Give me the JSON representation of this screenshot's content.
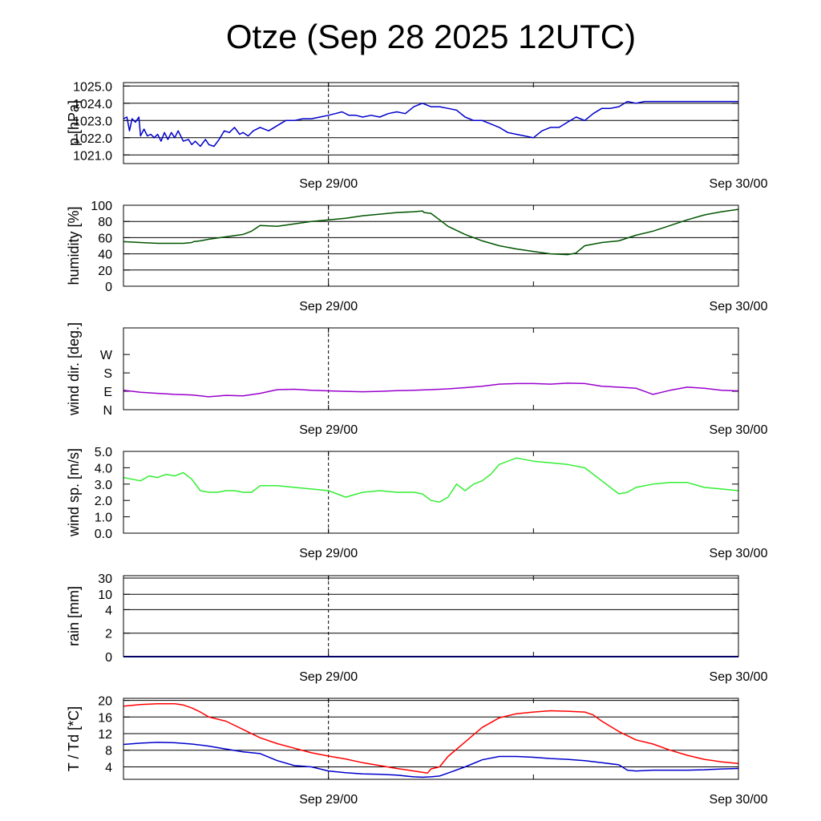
{
  "title": "Otze (Sep 28 2025 12UTC)",
  "x_labels": [
    "Sep 29/00",
    "Sep 30/00"
  ],
  "chart_data": [
    {
      "type": "line",
      "id": "pressure",
      "ylabel": "p [hPa]",
      "ylim": [
        1020.5,
        1025.2
      ],
      "yticks": [
        1021.0,
        1022.0,
        1023.0,
        1024.0,
        1025.0
      ],
      "ytick_labels": [
        "1021.0",
        "1022.0",
        "1023.0",
        "1024.0",
        "1025.0"
      ],
      "xlim": [
        0,
        36
      ],
      "x_tick_hours": [
        12,
        24,
        36
      ],
      "grid": true,
      "series": [
        {
          "color": "#0000cc",
          "x": [
            0,
            0.2,
            0.35,
            0.5,
            0.7,
            0.9,
            1.0,
            1.2,
            1.4,
            1.6,
            1.8,
            2.0,
            2.2,
            2.4,
            2.6,
            2.8,
            3.0,
            3.2,
            3.5,
            3.8,
            4.0,
            4.2,
            4.5,
            4.8,
            5.0,
            5.3,
            5.6,
            5.9,
            6.2,
            6.5,
            6.8,
            7.0,
            7.3,
            7.6,
            8.0,
            8.5,
            9.0,
            9.5,
            10.0,
            10.5,
            11.0,
            11.5,
            12.0,
            12.4,
            12.8,
            13.2,
            13.6,
            14.0,
            14.5,
            15.0,
            15.5,
            16.0,
            16.5,
            17.0,
            17.5,
            18.0,
            18.5,
            19.0,
            19.5,
            20.0,
            20.5,
            21.0,
            21.5,
            22.0,
            22.5,
            23.0,
            23.5,
            24.0,
            24.5,
            25.0,
            25.5,
            26.0,
            26.5,
            27.0,
            27.5,
            28.0,
            28.5,
            29.0,
            29.5,
            30.0,
            30.5,
            31.0,
            31.5,
            32.0,
            32.5,
            33.0,
            33.5,
            34.0,
            34.5,
            35.0,
            35.5,
            36.0
          ],
          "y": [
            1023.1,
            1023.2,
            1022.4,
            1023.1,
            1022.9,
            1023.2,
            1022.1,
            1022.5,
            1022.1,
            1022.2,
            1022.0,
            1022.2,
            1021.8,
            1022.3,
            1021.9,
            1022.3,
            1022.0,
            1022.4,
            1021.8,
            1021.9,
            1021.6,
            1021.8,
            1021.5,
            1021.9,
            1021.6,
            1021.5,
            1021.9,
            1022.4,
            1022.3,
            1022.6,
            1022.2,
            1022.3,
            1022.1,
            1022.4,
            1022.6,
            1022.4,
            1022.7,
            1023.0,
            1023.0,
            1023.1,
            1023.1,
            1023.2,
            1023.3,
            1023.4,
            1023.5,
            1023.3,
            1023.3,
            1023.2,
            1023.3,
            1023.2,
            1023.4,
            1023.5,
            1023.4,
            1023.8,
            1024.0,
            1023.8,
            1023.8,
            1023.7,
            1023.6,
            1023.2,
            1023.0,
            1023.0,
            1022.8,
            1022.6,
            1022.3,
            1022.2,
            1022.1,
            1022.0,
            1022.4,
            1022.6,
            1022.6,
            1022.9,
            1023.2,
            1023.0,
            1023.4,
            1023.7,
            1023.7,
            1023.8,
            1024.1,
            1024.0,
            1024.1,
            1024.1,
            1024.1,
            1024.1,
            1024.1,
            1024.1,
            1024.1,
            1024.1,
            1024.1,
            1024.1,
            1024.1,
            1024.1
          ]
        }
      ]
    },
    {
      "type": "line",
      "id": "humidity",
      "ylabel": "humidity [%]",
      "ylim": [
        0,
        100
      ],
      "yticks": [
        0,
        20,
        40,
        60,
        80,
        100
      ],
      "ytick_labels": [
        "0",
        "20",
        "40",
        "60",
        "80",
        "100"
      ],
      "xlim": [
        0,
        36
      ],
      "x_tick_hours": [
        12,
        24,
        36
      ],
      "grid": true,
      "series": [
        {
          "color": "#005500",
          "x": [
            0,
            1,
            2,
            3,
            3.5,
            4.0,
            4.1,
            4.5,
            5.0,
            6,
            7,
            7.5,
            8,
            9,
            10,
            11,
            12,
            13,
            14,
            15,
            16,
            17,
            17.5,
            17.6,
            18,
            18.5,
            19,
            20,
            21,
            22,
            23,
            24,
            25,
            26,
            26.5,
            26.6,
            27,
            27.5,
            28,
            29,
            30,
            31,
            32,
            33,
            34,
            35,
            36
          ],
          "y": [
            55,
            54,
            53,
            53,
            53,
            54,
            55,
            56,
            58,
            61,
            64,
            68,
            75,
            74,
            77,
            80,
            82,
            84,
            87,
            89,
            91,
            92,
            93,
            91,
            90,
            82,
            74,
            64,
            56,
            50,
            46,
            43,
            40,
            39,
            41,
            43,
            50,
            52,
            54,
            56,
            63,
            68,
            75,
            82,
            88,
            92,
            95
          ]
        }
      ]
    },
    {
      "type": "line",
      "id": "wind_direction",
      "ylabel": "wind dir. [deg.]",
      "ylim": [
        0,
        400
      ],
      "yticks": [
        0,
        90,
        180,
        270
      ],
      "ytick_labels": [
        "N",
        "E",
        "S",
        "W"
      ],
      "xlim": [
        0,
        36
      ],
      "x_tick_hours": [
        12,
        24,
        36
      ],
      "grid": false,
      "series": [
        {
          "color": "#9900cc",
          "x": [
            0,
            1,
            2,
            3,
            4,
            5,
            6,
            7,
            8,
            9,
            10,
            11,
            12,
            13,
            14,
            15,
            16,
            17,
            18,
            19,
            20,
            21,
            22,
            23,
            24,
            25,
            26,
            27,
            28,
            29,
            30,
            31,
            31.5,
            32,
            33,
            34,
            35,
            36
          ],
          "y": [
            95,
            85,
            80,
            75,
            72,
            63,
            70,
            68,
            80,
            98,
            100,
            95,
            92,
            90,
            88,
            90,
            93,
            95,
            98,
            102,
            108,
            115,
            125,
            128,
            128,
            125,
            130,
            128,
            115,
            110,
            105,
            75,
            85,
            95,
            110,
            105,
            95,
            92
          ]
        }
      ]
    },
    {
      "type": "line",
      "id": "wind_speed",
      "ylabel": "wind sp. [m/s]",
      "ylim": [
        0,
        5
      ],
      "yticks": [
        0.0,
        1.0,
        2.0,
        3.0,
        4.0,
        5.0
      ],
      "ytick_labels": [
        "0.0",
        "1.0",
        "2.0",
        "3.0",
        "4.0",
        "5.0"
      ],
      "xlim": [
        0,
        36
      ],
      "x_tick_hours": [
        12,
        24,
        36
      ],
      "grid": false,
      "series": [
        {
          "color": "#33ee33",
          "x": [
            0,
            0.5,
            1,
            1.5,
            2,
            2.5,
            3,
            3.5,
            4.0,
            4.5,
            5,
            5.5,
            6,
            6.5,
            7,
            7.5,
            8,
            9,
            10,
            11,
            12,
            12.5,
            13,
            14,
            15,
            16,
            17,
            17.5,
            18,
            18.5,
            19,
            19.5,
            20,
            20.5,
            21,
            21.5,
            22,
            23,
            24,
            25,
            26,
            27,
            28,
            29,
            29.5,
            30,
            31,
            32,
            33,
            34,
            35,
            36
          ],
          "y": [
            3.4,
            3.3,
            3.2,
            3.5,
            3.4,
            3.6,
            3.5,
            3.7,
            3.3,
            2.6,
            2.5,
            2.5,
            2.6,
            2.6,
            2.5,
            2.5,
            2.9,
            2.9,
            2.8,
            2.7,
            2.6,
            2.4,
            2.2,
            2.5,
            2.6,
            2.5,
            2.5,
            2.4,
            2.0,
            1.9,
            2.2,
            3.0,
            2.6,
            3.0,
            3.2,
            3.6,
            4.2,
            4.6,
            4.4,
            4.3,
            4.2,
            4.0,
            3.2,
            2.4,
            2.5,
            2.8,
            3.0,
            3.1,
            3.1,
            2.8,
            2.7,
            2.6
          ]
        }
      ]
    },
    {
      "type": "line",
      "id": "rain",
      "ylabel": "rain [mm]",
      "ylim": [
        0,
        31
      ],
      "yticks": [
        0,
        2,
        4,
        10,
        30
      ],
      "ytick_labels": [
        "0",
        "2",
        "4",
        "10",
        "30"
      ],
      "xlim": [
        0,
        36
      ],
      "x_tick_hours": [
        12,
        24,
        36
      ],
      "grid": true,
      "series": [
        {
          "color": "#0000cc",
          "x": [
            0,
            36
          ],
          "y": [
            0,
            0
          ]
        }
      ]
    },
    {
      "type": "line",
      "id": "temperature",
      "ylabel": "T / Td [*C]",
      "ylim": [
        1,
        20.5
      ],
      "yticks": [
        4,
        8,
        12,
        16,
        20
      ],
      "ytick_labels": [
        "4",
        "8",
        "12",
        "16",
        "20"
      ],
      "xlim": [
        0,
        36
      ],
      "x_tick_hours": [
        12,
        24,
        36
      ],
      "grid": true,
      "series": [
        {
          "color": "#ff0000",
          "x": [
            0,
            1,
            2,
            3,
            3.5,
            4,
            4.5,
            5,
            6,
            7,
            8,
            9,
            10,
            11,
            12,
            13,
            14,
            15,
            16,
            17,
            17.5,
            17.8,
            18,
            18.5,
            19,
            20,
            21,
            22,
            23,
            24,
            25,
            26,
            27,
            27.5,
            28,
            29,
            30,
            31,
            32,
            33,
            34,
            35,
            36
          ],
          "y": [
            18.6,
            19.0,
            19.2,
            19.2,
            18.9,
            18.2,
            17.2,
            16.0,
            15.0,
            13.0,
            11.0,
            9.6,
            8.5,
            7.4,
            6.6,
            5.9,
            5.0,
            4.3,
            3.6,
            3.0,
            2.7,
            2.5,
            3.5,
            4.0,
            6.5,
            10.0,
            13.5,
            15.8,
            16.8,
            17.2,
            17.5,
            17.4,
            17.2,
            16.5,
            15.0,
            12.5,
            10.5,
            9.5,
            8.0,
            6.8,
            5.8,
            5.2,
            4.8
          ]
        },
        {
          "color": "#0000cc",
          "x": [
            0,
            1,
            2,
            3,
            4,
            5,
            6,
            7,
            8,
            9,
            10,
            11,
            12,
            13,
            14,
            15,
            16,
            17,
            17.5,
            18,
            18.5,
            19,
            20,
            21,
            22,
            23,
            24,
            25,
            26,
            27,
            28,
            29,
            29.5,
            30,
            31,
            32,
            33,
            34,
            35,
            36
          ],
          "y": [
            9.4,
            9.7,
            9.9,
            9.8,
            9.5,
            9.0,
            8.3,
            7.6,
            7.2,
            5.5,
            4.3,
            4.0,
            3.0,
            2.6,
            2.3,
            2.2,
            2.0,
            1.6,
            1.5,
            1.6,
            1.8,
            2.5,
            4.0,
            5.7,
            6.5,
            6.5,
            6.3,
            6.0,
            5.8,
            5.5,
            5.0,
            4.5,
            3.2,
            3.0,
            3.2,
            3.2,
            3.2,
            3.3,
            3.5,
            3.6
          ]
        }
      ]
    }
  ]
}
